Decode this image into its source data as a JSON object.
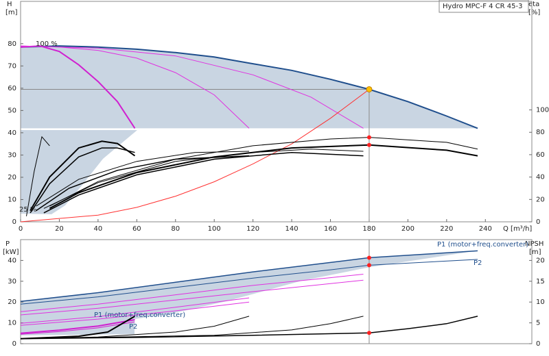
{
  "chart_data": [
    {
      "type": "line",
      "title": "Hydro MPC-F 4 CR 45-3",
      "y_label": "H",
      "y_unit": "[m]",
      "y2_label": "eta",
      "y2_unit": "[%]",
      "x_label": "Q [m³/h]",
      "xlim": [
        0,
        264
      ],
      "xticks": [
        0,
        20,
        40,
        60,
        80,
        100,
        120,
        140,
        160,
        180,
        200,
        220,
        240
      ],
      "ylim": [
        0,
        99
      ],
      "yticks": [
        0,
        10,
        20,
        30,
        40,
        50,
        60,
        70,
        80
      ],
      "y2lim": [
        0,
        197
      ],
      "y2ticks": [
        0,
        20,
        40,
        60,
        80,
        100
      ],
      "duty_point": {
        "x": 180,
        "y": 59.5
      },
      "annotations": [
        "100 %",
        "25 %"
      ],
      "series": [
        {
          "color": "#1f4e8c",
          "width": 2,
          "x": [
            0,
            20,
            40,
            60,
            80,
            100,
            120,
            140,
            160,
            180,
            200,
            220,
            236
          ],
          "values": [
            78.5,
            79,
            78.5,
            77.5,
            76,
            74,
            71,
            68,
            64,
            59.5,
            54,
            47.5,
            42
          ]
        },
        {
          "color": "#d020d0",
          "width": 2,
          "x": [
            0,
            10,
            20,
            30,
            40,
            50,
            59
          ],
          "values": [
            78.5,
            79,
            76.5,
            70.5,
            63,
            54,
            42
          ]
        },
        {
          "color": "#e030e0",
          "width": 1,
          "x": [
            0,
            20,
            40,
            60,
            80,
            100,
            118
          ],
          "values": [
            79,
            78.5,
            77,
            73.5,
            67,
            57,
            42
          ]
        },
        {
          "color": "#e030e0",
          "width": 1,
          "x": [
            0,
            40,
            80,
            120,
            150,
            177
          ],
          "values": [
            79,
            78,
            74.5,
            66,
            56,
            42
          ]
        },
        {
          "color": "#ff3030",
          "width": 1,
          "x": [
            0,
            40,
            60,
            80,
            100,
            120,
            140,
            160,
            180
          ],
          "values": [
            0,
            3,
            6.5,
            11.5,
            18,
            26,
            35,
            46.5,
            59.5
          ]
        },
        {
          "color": "#000000",
          "width": 2,
          "axis": "y2",
          "x": [
            15,
            30,
            60,
            100,
            140,
            180,
            220,
            236
          ],
          "values": [
            12,
            26,
            44,
            58,
            66,
            68.7,
            64,
            59
          ]
        },
        {
          "color": "#000000",
          "width": 1,
          "axis": "y2",
          "x": [
            15,
            40,
            80,
            120,
            160,
            180,
            220,
            236
          ],
          "values": [
            14,
            36,
            56,
            68,
            74,
            75.5,
            71,
            65
          ]
        },
        {
          "color": "#000000",
          "width": 1.5,
          "axis": "y2",
          "x": [
            12,
            30,
            60,
            100,
            140,
            177
          ],
          "values": [
            8,
            24,
            42,
            56,
            62,
            59
          ]
        },
        {
          "color": "#000000",
          "width": 1,
          "axis": "y2",
          "x": [
            12,
            40,
            80,
            120,
            150,
            177
          ],
          "values": [
            12,
            35,
            54,
            62,
            65,
            63
          ]
        },
        {
          "color": "#000000",
          "width": 1.5,
          "axis": "y2",
          "x": [
            8,
            25,
            50,
            80,
            118
          ],
          "values": [
            10,
            30,
            46,
            56,
            59
          ]
        },
        {
          "color": "#000000",
          "width": 1,
          "axis": "y2",
          "x": [
            8,
            30,
            60,
            90,
            118
          ],
          "values": [
            14,
            38,
            54,
            62,
            63
          ]
        },
        {
          "color": "#000000",
          "width": 2,
          "axis": "y2",
          "x": [
            5,
            15,
            30,
            42,
            50,
            59
          ],
          "values": [
            10,
            40,
            66,
            72,
            70,
            59
          ]
        },
        {
          "color": "#000000",
          "width": 1.5,
          "axis": "y2",
          "x": [
            5,
            15,
            30,
            42,
            50,
            59
          ],
          "values": [
            8,
            34,
            58,
            66,
            66,
            62
          ]
        },
        {
          "color": "#000000",
          "width": 1,
          "axis": "y2",
          "x": [
            3,
            7,
            11,
            15
          ],
          "values": [
            5,
            45,
            76,
            68
          ]
        }
      ]
    },
    {
      "type": "line",
      "y_label": "P",
      "y_unit": "[kW]",
      "y2_label": "NPSH",
      "y2_unit": "[m]",
      "xlim": [
        0,
        264
      ],
      "ylim": [
        0,
        50
      ],
      "yticks": [
        0,
        10,
        20,
        30,
        40
      ],
      "y2lim": [
        0,
        25
      ],
      "y2ticks": [
        0,
        5,
        10,
        15,
        20
      ],
      "annotations": [
        "P1 (motor+freq.converter)",
        "P2",
        "P1 (motor+freq.converter)",
        "P2"
      ],
      "series": [
        {
          "color": "#1f4e8c",
          "width": 1.5,
          "x": [
            0,
            40,
            80,
            120,
            160,
            180,
            236
          ],
          "values": [
            20.3,
            24.5,
            29.5,
            34.5,
            39,
            41.3,
            44.6
          ]
        },
        {
          "color": "#1f4e8c",
          "width": 1,
          "x": [
            0,
            40,
            80,
            120,
            160,
            180,
            236
          ],
          "values": [
            19,
            22.5,
            27,
            31.5,
            35.5,
            37.7,
            40.5
          ]
        },
        {
          "color": "#e030e0",
          "width": 1,
          "x": [
            0,
            40,
            80,
            120,
            160,
            177
          ],
          "values": [
            15.4,
            19,
            23.5,
            28,
            31.7,
            33.4
          ]
        },
        {
          "color": "#e030e0",
          "width": 1,
          "x": [
            0,
            40,
            80,
            120,
            177
          ],
          "values": [
            13.8,
            17,
            21,
            25,
            30.5
          ]
        },
        {
          "color": "#e030e0",
          "width": 1,
          "x": [
            0,
            40,
            80,
            118
          ],
          "values": [
            9.8,
            13,
            17.5,
            22
          ]
        },
        {
          "color": "#e030e0",
          "width": 1,
          "x": [
            0,
            40,
            80,
            118
          ],
          "values": [
            8.8,
            11.8,
            15.8,
            20
          ]
        },
        {
          "color": "#d020d0",
          "width": 2,
          "x": [
            0,
            20,
            40,
            59
          ],
          "values": [
            5,
            6.5,
            8.5,
            11.5
          ]
        },
        {
          "color": "#d020d0",
          "width": 1,
          "x": [
            0,
            20,
            40,
            59
          ],
          "values": [
            4.5,
            5.8,
            7.6,
            10.5
          ]
        },
        {
          "color": "#000000",
          "width": 1.5,
          "axis": "y2",
          "x": [
            0,
            60,
            120,
            180,
            200,
            220,
            236
          ],
          "values": [
            1.2,
            1.5,
            2,
            2.6,
            3.6,
            4.8,
            6.6
          ]
        },
        {
          "color": "#000000",
          "width": 1,
          "axis": "y2",
          "x": [
            0,
            100,
            140,
            160,
            177
          ],
          "values": [
            1.2,
            2,
            3.3,
            4.8,
            6.6
          ]
        },
        {
          "color": "#000000",
          "width": 1,
          "axis": "y2",
          "x": [
            0,
            40,
            80,
            100,
            118
          ],
          "values": [
            1.2,
            1.6,
            2.8,
            4.2,
            6.6
          ]
        },
        {
          "color": "#000000",
          "width": 2,
          "axis": "y2",
          "x": [
            0,
            30,
            45,
            59
          ],
          "values": [
            1.2,
            1.8,
            2.8,
            6.6
          ]
        }
      ]
    }
  ]
}
